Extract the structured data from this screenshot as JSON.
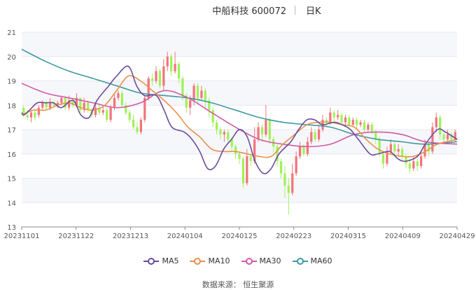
{
  "title": "中船科技 600072",
  "period": "日K",
  "source": "数据来源： 恒生聚源",
  "chart_data": {
    "type": "candlestick",
    "ylim": [
      13,
      21
    ],
    "yticks": [
      13,
      14,
      15,
      16,
      17,
      18,
      19,
      20,
      21
    ],
    "xticks": [
      "20231101",
      "20231122",
      "20231213",
      "20240104",
      "20240125",
      "20240223",
      "20240315",
      "20240409",
      "20240429"
    ],
    "colors": {
      "up": "#f4737b",
      "down": "#9ff25a",
      "ma5": "#6a4c9c",
      "ma10": "#e8914a",
      "ma30": "#d25aa4",
      "ma60": "#3d9aa0"
    },
    "candles": [
      [
        17.9,
        17.6,
        18.0,
        17.5
      ],
      [
        17.6,
        17.5,
        17.8,
        17.4
      ],
      [
        17.5,
        17.7,
        17.8,
        17.3
      ],
      [
        17.7,
        17.5,
        17.8,
        17.4
      ],
      [
        17.6,
        17.9,
        18.0,
        17.5
      ],
      [
        17.9,
        18.1,
        18.2,
        17.8
      ],
      [
        18.1,
        17.9,
        18.2,
        17.8
      ],
      [
        17.9,
        18.1,
        18.3,
        17.8
      ],
      [
        18.1,
        18.0,
        18.2,
        17.9
      ],
      [
        18.0,
        18.1,
        18.2,
        17.9
      ],
      [
        18.1,
        18.3,
        18.4,
        18.0
      ],
      [
        18.3,
        17.9,
        18.4,
        17.8
      ],
      [
        17.9,
        18.2,
        18.4,
        17.8
      ],
      [
        18.2,
        18.0,
        18.3,
        17.9
      ],
      [
        18.0,
        18.3,
        18.5,
        17.9
      ],
      [
        18.3,
        17.8,
        18.3,
        17.7
      ],
      [
        17.8,
        18.1,
        18.3,
        17.7
      ],
      [
        18.1,
        17.8,
        18.2,
        17.7
      ],
      [
        17.8,
        17.6,
        17.9,
        17.5
      ],
      [
        17.6,
        17.9,
        18.1,
        17.5
      ],
      [
        17.9,
        17.7,
        18.0,
        17.6
      ],
      [
        17.7,
        17.8,
        18.0,
        17.6
      ],
      [
        17.8,
        17.4,
        17.9,
        17.3
      ],
      [
        17.4,
        17.9,
        18.0,
        17.3
      ],
      [
        17.9,
        18.3,
        18.5,
        17.8
      ],
      [
        18.3,
        18.5,
        18.6,
        18.2
      ],
      [
        18.5,
        18.0,
        18.6,
        17.9
      ],
      [
        18.0,
        17.7,
        18.1,
        17.6
      ],
      [
        17.7,
        17.4,
        17.8,
        17.3
      ],
      [
        17.4,
        17.1,
        17.6,
        17.0
      ],
      [
        17.1,
        16.9,
        17.3,
        16.8
      ],
      [
        16.9,
        17.4,
        17.5,
        16.8
      ],
      [
        17.4,
        18.3,
        18.4,
        17.3
      ],
      [
        18.3,
        19.1,
        19.2,
        18.2
      ],
      [
        19.1,
        19.0,
        19.3,
        18.8
      ],
      [
        19.0,
        19.4,
        19.6,
        18.9
      ],
      [
        19.4,
        18.8,
        19.5,
        18.7
      ],
      [
        18.8,
        19.6,
        19.9,
        18.6
      ],
      [
        19.6,
        20.0,
        20.2,
        19.4
      ],
      [
        20.0,
        19.4,
        20.1,
        19.2
      ],
      [
        19.4,
        19.7,
        20.2,
        19.3
      ],
      [
        19.7,
        19.1,
        19.8,
        18.9
      ],
      [
        19.1,
        18.4,
        19.2,
        18.2
      ],
      [
        18.4,
        17.9,
        18.5,
        17.7
      ],
      [
        17.9,
        18.2,
        18.4,
        17.6
      ],
      [
        18.2,
        18.8,
        18.9,
        18.0
      ],
      [
        18.8,
        18.3,
        18.9,
        18.1
      ],
      [
        18.3,
        18.6,
        18.8,
        18.2
      ],
      [
        18.6,
        18.2,
        18.7,
        17.9
      ],
      [
        18.2,
        17.8,
        18.3,
        17.5
      ],
      [
        17.8,
        17.3,
        17.9,
        17.1
      ],
      [
        17.3,
        17.0,
        17.4,
        16.8
      ],
      [
        17.0,
        16.8,
        17.1,
        16.6
      ],
      [
        16.8,
        16.9,
        17.0,
        16.5
      ],
      [
        16.9,
        16.6,
        17.0,
        16.4
      ],
      [
        16.6,
        16.3,
        16.7,
        16.1
      ],
      [
        16.3,
        16.0,
        16.4,
        15.8
      ],
      [
        16.0,
        15.8,
        16.1,
        15.6
      ],
      [
        15.8,
        14.8,
        15.9,
        14.6
      ],
      [
        14.8,
        15.9,
        16.2,
        14.7
      ],
      [
        15.9,
        15.7,
        16.0,
        15.5
      ],
      [
        15.7,
        16.6,
        17.1,
        15.6
      ],
      [
        16.6,
        17.1,
        17.3,
        16.5
      ],
      [
        17.1,
        16.8,
        17.2,
        16.5
      ],
      [
        16.8,
        17.4,
        18.0,
        16.7
      ],
      [
        17.4,
        16.6,
        17.5,
        16.4
      ],
      [
        16.6,
        16.3,
        16.7,
        16.1
      ],
      [
        16.3,
        15.7,
        16.4,
        15.5
      ],
      [
        15.7,
        15.2,
        15.8,
        15.0
      ],
      [
        15.2,
        14.7,
        15.5,
        14.2
      ],
      [
        14.7,
        14.4,
        15.0,
        13.5
      ],
      [
        14.4,
        15.2,
        15.6,
        14.3
      ],
      [
        15.2,
        15.9,
        16.1,
        15.1
      ],
      [
        15.9,
        16.3,
        16.5,
        15.8
      ],
      [
        16.3,
        16.0,
        16.4,
        15.9
      ],
      [
        16.0,
        16.5,
        16.7,
        15.9
      ],
      [
        16.5,
        16.9,
        17.1,
        16.4
      ],
      [
        16.9,
        16.6,
        17.0,
        16.5
      ],
      [
        16.6,
        17.0,
        17.2,
        16.5
      ],
      [
        17.0,
        17.4,
        17.6,
        16.9
      ],
      [
        17.4,
        17.3,
        17.5,
        17.1
      ],
      [
        17.3,
        17.7,
        17.9,
        17.2
      ],
      [
        17.7,
        17.5,
        17.8,
        17.3
      ],
      [
        17.5,
        17.6,
        17.8,
        17.4
      ],
      [
        17.6,
        17.3,
        17.7,
        17.2
      ],
      [
        17.3,
        17.5,
        17.6,
        17.2
      ],
      [
        17.5,
        17.2,
        17.6,
        17.1
      ],
      [
        17.2,
        17.4,
        17.5,
        17.1
      ],
      [
        17.4,
        17.2,
        17.5,
        17.0
      ],
      [
        17.2,
        17.3,
        17.4,
        17.1
      ],
      [
        17.3,
        17.0,
        17.4,
        16.9
      ],
      [
        17.0,
        17.2,
        17.3,
        16.9
      ],
      [
        17.2,
        16.9,
        17.3,
        16.8
      ],
      [
        16.9,
        16.6,
        17.0,
        16.4
      ],
      [
        16.6,
        16.0,
        16.7,
        15.9
      ],
      [
        16.0,
        15.6,
        16.1,
        15.4
      ],
      [
        15.6,
        16.1,
        16.3,
        15.5
      ],
      [
        16.1,
        16.4,
        16.6,
        16.0
      ],
      [
        16.4,
        16.1,
        16.5,
        15.9
      ],
      [
        16.1,
        16.2,
        16.4,
        15.9
      ],
      [
        16.2,
        15.9,
        16.3,
        15.7
      ],
      [
        15.9,
        15.6,
        16.0,
        15.4
      ],
      [
        15.6,
        15.4,
        15.8,
        15.2
      ],
      [
        15.4,
        15.7,
        15.9,
        15.3
      ],
      [
        15.7,
        15.5,
        15.8,
        15.3
      ],
      [
        15.5,
        15.9,
        16.1,
        15.4
      ],
      [
        15.9,
        16.4,
        16.6,
        15.8
      ],
      [
        16.4,
        16.1,
        16.5,
        15.9
      ],
      [
        16.1,
        17.1,
        17.3,
        16.0
      ],
      [
        17.1,
        17.5,
        17.7,
        16.9
      ],
      [
        17.5,
        16.8,
        17.6,
        16.6
      ],
      [
        16.8,
        16.6,
        16.9,
        16.4
      ],
      [
        16.6,
        16.8,
        17.0,
        16.5
      ],
      [
        16.8,
        16.6,
        16.9,
        16.4
      ],
      [
        16.6,
        16.9,
        17.0,
        16.5
      ]
    ],
    "ma": {
      "MA5": [
        [
          0,
          17.7
        ],
        [
          0.5,
          17.6
        ],
        [
          1.8,
          17.8
        ],
        [
          3.6,
          18.1
        ],
        [
          5.5,
          18.1
        ],
        [
          7.3,
          18.1
        ],
        [
          9.1,
          17.9
        ],
        [
          11.8,
          18.2
        ],
        [
          13.6,
          17.6
        ],
        [
          15.5,
          17.5
        ],
        [
          17.3,
          18.2
        ],
        [
          20,
          18.8
        ],
        [
          21.8,
          19.2
        ],
        [
          24.5,
          19.6
        ],
        [
          26.4,
          18.8
        ],
        [
          28.2,
          18.4
        ],
        [
          30.9,
          18.4
        ],
        [
          32.7,
          17.8
        ],
        [
          34.5,
          17.1
        ],
        [
          37.3,
          16.9
        ],
        [
          39.1,
          16.6
        ],
        [
          40.9,
          16.1
        ],
        [
          42.7,
          15.4
        ],
        [
          44.5,
          15.5
        ],
        [
          46.4,
          16.2
        ],
        [
          48.2,
          16.6
        ],
        [
          50,
          17.0
        ],
        [
          51.8,
          16.7
        ],
        [
          53.6,
          15.7
        ],
        [
          55.5,
          15.2
        ],
        [
          57.3,
          15.4
        ],
        [
          59.1,
          16.0
        ],
        [
          61.8,
          16.5
        ],
        [
          63.6,
          17.0
        ],
        [
          65.5,
          17.4
        ],
        [
          67.3,
          17.4
        ],
        [
          69.1,
          17.2
        ],
        [
          71.8,
          17.3
        ],
        [
          73.6,
          17.2
        ],
        [
          75.5,
          17.0
        ],
        [
          77.3,
          16.6
        ],
        [
          80,
          16.0
        ],
        [
          81.8,
          16.0
        ],
        [
          84.5,
          16.1
        ],
        [
          86.4,
          15.8
        ],
        [
          88.2,
          15.7
        ],
        [
          90.9,
          15.9
        ],
        [
          92.7,
          16.4
        ],
        [
          95.5,
          17.0
        ],
        [
          97.3,
          16.9
        ],
        [
          100,
          16.6
        ]
      ],
      "MA10": [
        [
          0,
          17.6
        ],
        [
          2.7,
          17.8
        ],
        [
          5.5,
          17.8
        ],
        [
          8.2,
          18.0
        ],
        [
          10.9,
          18.1
        ],
        [
          13.6,
          17.9
        ],
        [
          16.4,
          17.8
        ],
        [
          19.1,
          18.0
        ],
        [
          21.8,
          18.6
        ],
        [
          24.5,
          19.2
        ],
        [
          27.3,
          19.0
        ],
        [
          30,
          18.6
        ],
        [
          32.7,
          18.2
        ],
        [
          35.5,
          17.7
        ],
        [
          38.2,
          17.1
        ],
        [
          40.9,
          16.7
        ],
        [
          43.6,
          16.2
        ],
        [
          46.4,
          16.1
        ],
        [
          49.1,
          16.1
        ],
        [
          51.8,
          16.0
        ],
        [
          54.5,
          15.9
        ],
        [
          57.3,
          15.9
        ],
        [
          60,
          16.4
        ],
        [
          62.7,
          16.8
        ],
        [
          65.5,
          17.2
        ],
        [
          68.2,
          17.3
        ],
        [
          70.9,
          17.3
        ],
        [
          73.6,
          17.2
        ],
        [
          76.4,
          17.1
        ],
        [
          79.1,
          16.6
        ],
        [
          81.8,
          16.2
        ],
        [
          84.5,
          16.0
        ],
        [
          87.3,
          15.9
        ],
        [
          90,
          15.9
        ],
        [
          92.7,
          16.1
        ],
        [
          95.5,
          16.4
        ],
        [
          100,
          16.6
        ]
      ],
      "MA30": [
        [
          0,
          18.9
        ],
        [
          5.5,
          18.5
        ],
        [
          10.9,
          18.3
        ],
        [
          16.4,
          18.1
        ],
        [
          21.8,
          17.9
        ],
        [
          27.3,
          18.1
        ],
        [
          32.7,
          18.6
        ],
        [
          38.2,
          18.3
        ],
        [
          43.6,
          17.7
        ],
        [
          49.1,
          17.1
        ],
        [
          54.5,
          16.6
        ],
        [
          60,
          16.4
        ],
        [
          65.5,
          16.3
        ],
        [
          70.9,
          16.4
        ],
        [
          76.4,
          16.8
        ],
        [
          81.8,
          16.9
        ],
        [
          87.3,
          16.8
        ],
        [
          92.7,
          16.5
        ],
        [
          100,
          16.4
        ]
      ],
      "MA60": [
        [
          0,
          20.3
        ],
        [
          5.5,
          19.8
        ],
        [
          10.9,
          19.4
        ],
        [
          16.4,
          19.1
        ],
        [
          21.8,
          18.8
        ],
        [
          27.3,
          18.5
        ],
        [
          32.7,
          18.4
        ],
        [
          38.2,
          18.3
        ],
        [
          43.6,
          18.1
        ],
        [
          49.1,
          17.8
        ],
        [
          54.5,
          17.5
        ],
        [
          60,
          17.3
        ],
        [
          65.5,
          17.2
        ],
        [
          70.9,
          17.1
        ],
        [
          76.4,
          16.8
        ],
        [
          81.8,
          16.6
        ],
        [
          87.3,
          16.5
        ],
        [
          92.7,
          16.4
        ],
        [
          100,
          16.5
        ]
      ]
    }
  },
  "legend": [
    {
      "name": "MA5",
      "color": "#6a4c9c"
    },
    {
      "name": "MA10",
      "color": "#e8914a"
    },
    {
      "name": "MA30",
      "color": "#d25aa4"
    },
    {
      "name": "MA60",
      "color": "#3d9aa0"
    }
  ]
}
